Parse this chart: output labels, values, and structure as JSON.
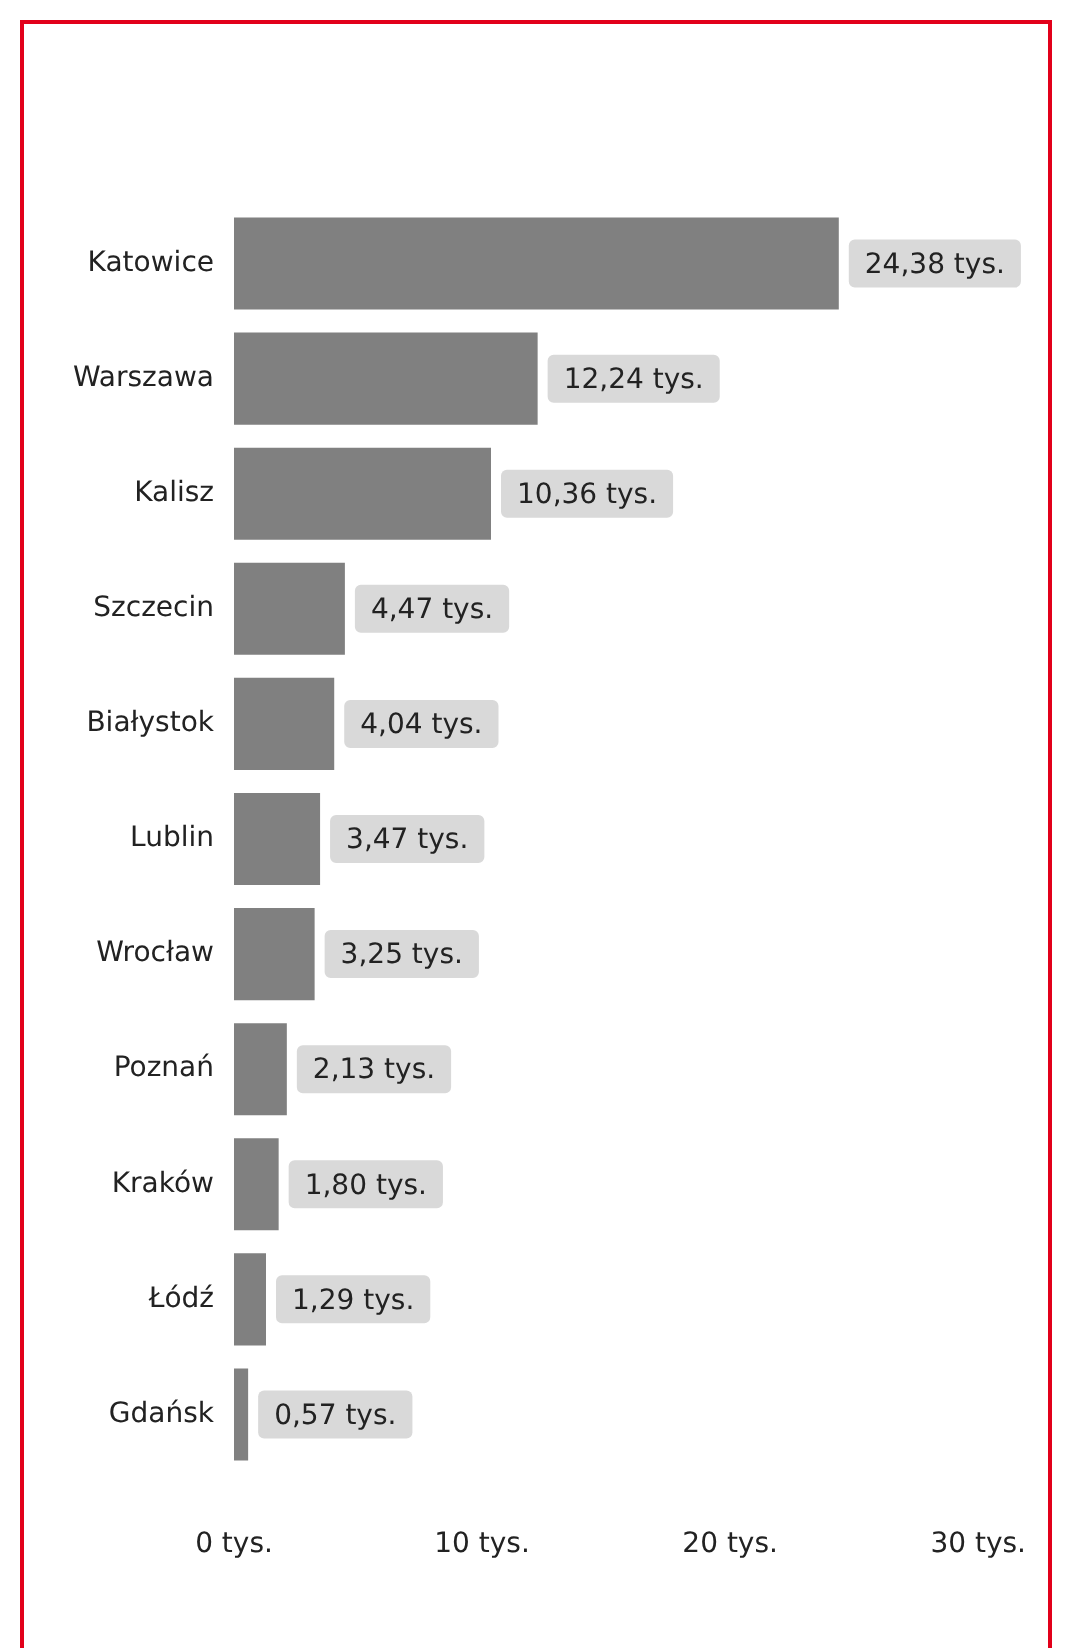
{
  "chart_data": {
    "type": "bar",
    "orientation": "horizontal",
    "categories": [
      "Katowice",
      "Warszawa",
      "Kalisz",
      "Szczecin",
      "Białystok",
      "Lublin",
      "Wrocław",
      "Poznań",
      "Kraków",
      "Łódź",
      "Gdańsk"
    ],
    "values": [
      24.38,
      12.24,
      10.36,
      4.47,
      4.04,
      3.47,
      3.25,
      2.13,
      1.8,
      1.29,
      0.57
    ],
    "value_labels": [
      "24,38 tys.",
      "12,24 tys.",
      "10,36 tys.",
      "4,47 tys.",
      "4,04 tys.",
      "3,47 tys.",
      "3,25 tys.",
      "2,13 tys.",
      "1,80 tys.",
      "1,29 tys.",
      "0,57 tys."
    ],
    "color": "#808080",
    "xlim": [
      0,
      30
    ],
    "xticks": [
      {
        "value": 0,
        "label": "0 tys."
      },
      {
        "value": 10,
        "label": "10 tys."
      },
      {
        "value": 20,
        "label": "20 tys."
      },
      {
        "value": 30,
        "label": "30 tys."
      }
    ],
    "grid": false,
    "legend": false
  }
}
